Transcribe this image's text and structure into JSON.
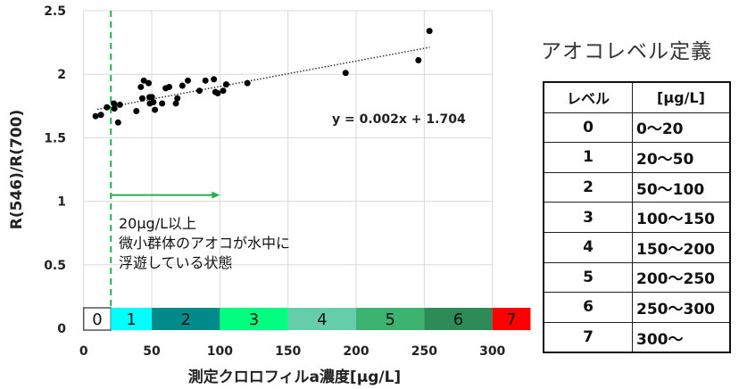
{
  "chart_data": {
    "type": "scatter",
    "xlabel": "測定クロロフィルa濃度[μg/L]",
    "ylabel": "R(546)/R(700)",
    "xlim": [
      0,
      300
    ],
    "ylim": [
      0,
      2.5
    ],
    "xticks": [
      "0",
      "50",
      "100",
      "150",
      "200",
      "250",
      "300"
    ],
    "yticks": [
      "0",
      "0.5",
      "1",
      "1.5",
      "2",
      "2.5"
    ],
    "grid": true,
    "points": [
      [
        8.8,
        1.67
      ],
      [
        12.7,
        1.68
      ],
      [
        17.1,
        1.74
      ],
      [
        22.2,
        1.77
      ],
      [
        22.6,
        1.73
      ],
      [
        25.3,
        1.62
      ],
      [
        26.6,
        1.76
      ],
      [
        38.7,
        1.71
      ],
      [
        42,
        1.9
      ],
      [
        43.1,
        1.81
      ],
      [
        44.2,
        1.95
      ],
      [
        47.7,
        1.93
      ],
      [
        48.3,
        1.82
      ],
      [
        48.6,
        1.77
      ],
      [
        50.1,
        1.82
      ],
      [
        51.2,
        1.78
      ],
      [
        52.3,
        1.72
      ],
      [
        57.6,
        1.77
      ],
      [
        60.2,
        1.89
      ],
      [
        62.8,
        1.9
      ],
      [
        67.7,
        1.77
      ],
      [
        68.8,
        1.81
      ],
      [
        72.5,
        1.91
      ],
      [
        76.5,
        1.95
      ],
      [
        85,
        1.87
      ],
      [
        89.4,
        1.95
      ],
      [
        95.6,
        1.96
      ],
      [
        96.7,
        1.86
      ],
      [
        98.4,
        1.85
      ],
      [
        102.4,
        1.87
      ],
      [
        104.6,
        1.92
      ],
      [
        120.2,
        1.93
      ],
      [
        192.3,
        2.01
      ],
      [
        245.7,
        2.11
      ],
      [
        253.8,
        2.34
      ]
    ],
    "trendline": {
      "slope": 0.002,
      "intercept": 1.704,
      "x_range": [
        10,
        254
      ],
      "label": "y = 0.002x + 1.704"
    },
    "threshold_x": 20,
    "arrow": {
      "y": 1,
      "x_from": 20,
      "x_to": 100
    },
    "annotation": [
      "20μg/L以上",
      "微小群体のアオコが水中に",
      "浮遊している状態"
    ],
    "level_bar": [
      {
        "label": "0",
        "from": 0,
        "to": 20,
        "color": "#ffffff"
      },
      {
        "label": "1",
        "from": 20,
        "to": 50,
        "color": "#00ffff"
      },
      {
        "label": "2",
        "from": 50,
        "to": 100,
        "color": "#008b8b"
      },
      {
        "label": "3",
        "from": 100,
        "to": 150,
        "color": "#00ff7f"
      },
      {
        "label": "4",
        "from": 150,
        "to": 200,
        "color": "#66cdaa"
      },
      {
        "label": "5",
        "from": 200,
        "to": 250,
        "color": "#3cb371"
      },
      {
        "label": "6",
        "from": 250,
        "to": 300,
        "color": "#2e8b57"
      },
      {
        "label": "7",
        "from": 300,
        "to": 328,
        "color": "#ff0000"
      }
    ],
    "threshold_color": "#22b14c"
  },
  "table": {
    "title": "アオコレベル定義",
    "headers": [
      "レベル",
      "[μg/L]"
    ],
    "rows": [
      [
        "0",
        "0～20"
      ],
      [
        "1",
        "20～50"
      ],
      [
        "2",
        "50～100"
      ],
      [
        "3",
        "100～150"
      ],
      [
        "4",
        "150～200"
      ],
      [
        "5",
        "200～250"
      ],
      [
        "6",
        "250～300"
      ],
      [
        "7",
        "300～"
      ]
    ]
  }
}
